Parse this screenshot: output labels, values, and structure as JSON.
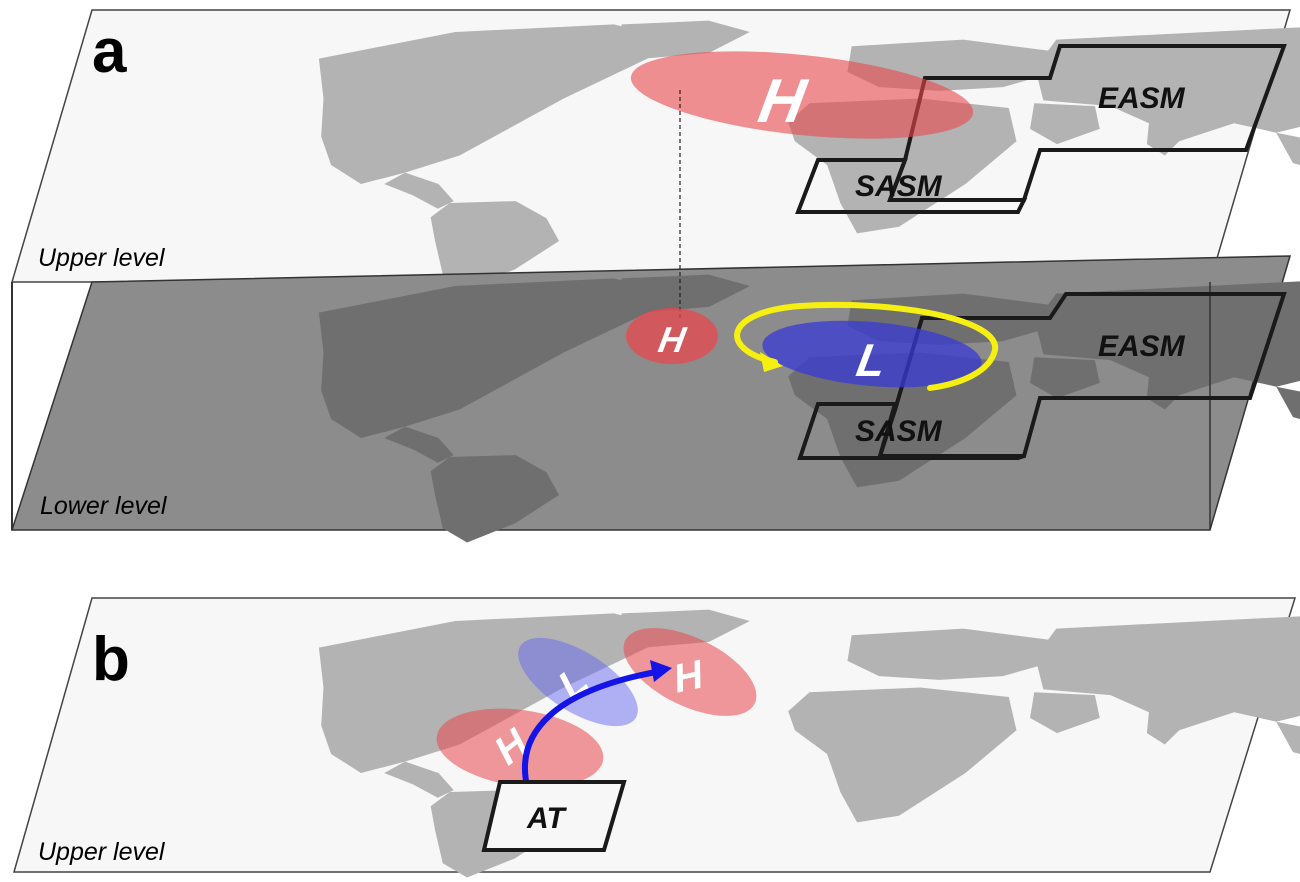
{
  "panels": {
    "a": {
      "letter": "a",
      "upper": {
        "level_label": "Upper level",
        "systems": [
          {
            "symbol": "H",
            "color": "#e8474d"
          }
        ],
        "regions": [
          "EASM",
          "SASM"
        ]
      },
      "lower": {
        "level_label": "Lower level",
        "systems": [
          {
            "symbol": "H",
            "color": "#e8474d"
          },
          {
            "symbol": "L",
            "color": "#3a3ad6"
          }
        ],
        "circulation_arrow_color": "#f5ef12",
        "regions": [
          "EASM",
          "SASM"
        ]
      }
    },
    "b": {
      "letter": "b",
      "level_label": "Upper level",
      "systems": [
        {
          "symbol": "H",
          "color": "#e8474d"
        },
        {
          "symbol": "L",
          "color": "#6868f0"
        },
        {
          "symbol": "H",
          "color": "#e8474d"
        }
      ],
      "wave_train_arrow_color": "#1414e6",
      "source_region": "AT"
    }
  }
}
